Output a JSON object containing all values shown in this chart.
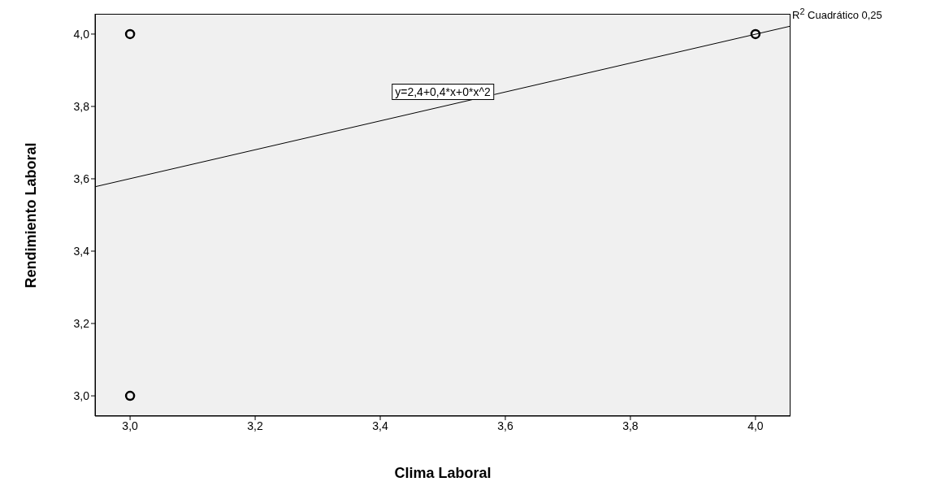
{
  "chart_data": {
    "type": "scatter",
    "xlabel": "Clima Laboral",
    "ylabel": "Rendimiento Laboral",
    "series": [
      {
        "color": "#000000",
        "x": [
          3,
          3,
          4
        ],
        "values": [
          4,
          3,
          4
        ],
        "marker": "circle"
      },
      {
        "type": "line",
        "color": "#000000",
        "x": [
          2.944,
          4.056
        ],
        "values": [
          3.578,
          4.022
        ],
        "marker": "none",
        "line_style": "solid"
      }
    ],
    "xlim": [
      2.944,
      4.056
    ],
    "ylim": [
      2.944,
      4.056
    ],
    "xticks": [
      {
        "value": 3,
        "label": "3,0"
      },
      {
        "value": 3.2,
        "label": "3,2"
      },
      {
        "value": 3.4,
        "label": "3,4"
      },
      {
        "value": 3.6,
        "label": "3,6"
      },
      {
        "value": 3.8,
        "label": "3,8"
      },
      {
        "value": 4,
        "label": "4,0"
      }
    ],
    "yticks": [
      {
        "value": 3,
        "label": "3,0"
      },
      {
        "value": 3.2,
        "label": "3,2"
      },
      {
        "value": 3.4,
        "label": "3,4"
      },
      {
        "value": 3.6,
        "label": "3,6"
      },
      {
        "value": 3.8,
        "label": "3,8"
      },
      {
        "value": 4,
        "label": "4,0"
      }
    ],
    "annotations": [
      "y=2,4+0,4*x+0*x^2",
      "R$^{2}$ Cuadrático 0,25"
    ],
    "grid": false
  }
}
